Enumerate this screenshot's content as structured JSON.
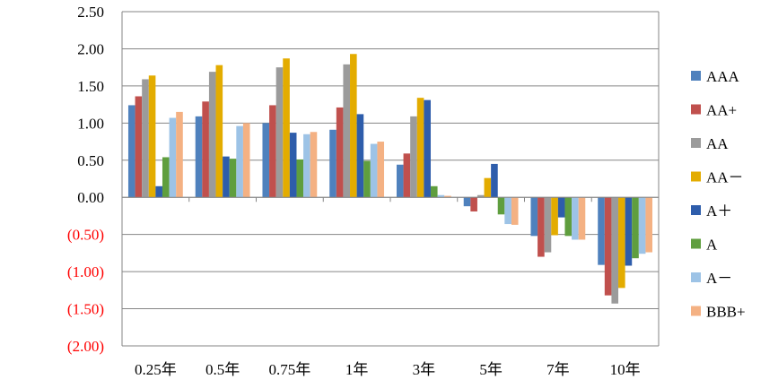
{
  "chart_data": {
    "type": "bar",
    "categories": [
      "0.25年",
      "0.5年",
      "0.75年",
      "1年",
      "3年",
      "5年",
      "7年",
      "10年"
    ],
    "series": [
      {
        "name": "AAA",
        "color": "#4F81BD",
        "values": [
          1.24,
          1.09,
          1.0,
          0.91,
          0.44,
          -0.12,
          -0.52,
          -0.91
        ]
      },
      {
        "name": "AA+",
        "color": "#C0504D",
        "values": [
          1.36,
          1.29,
          1.24,
          1.21,
          0.59,
          -0.19,
          -0.8,
          -1.32
        ]
      },
      {
        "name": "AA",
        "color": "#9B9B9B",
        "values": [
          1.59,
          1.69,
          1.75,
          1.79,
          1.09,
          0.03,
          -0.74,
          -1.43
        ]
      },
      {
        "name": "AA－",
        "color": "#E3AC00",
        "values": [
          1.64,
          1.78,
          1.87,
          1.93,
          1.34,
          0.26,
          -0.51,
          -1.22
        ]
      },
      {
        "name": "A＋",
        "color": "#2E5DAB",
        "values": [
          0.15,
          0.55,
          0.87,
          1.12,
          1.31,
          0.45,
          -0.27,
          -0.92
        ]
      },
      {
        "name": "A",
        "color": "#5F9E3E",
        "values": [
          0.54,
          0.52,
          0.51,
          0.49,
          0.15,
          -0.23,
          -0.52,
          -0.82
        ]
      },
      {
        "name": "A－",
        "color": "#9DC3E6",
        "values": [
          1.07,
          0.96,
          0.85,
          0.72,
          0.03,
          -0.36,
          -0.57,
          -0.76
        ]
      },
      {
        "name": "BBB+",
        "color": "#F4B183",
        "values": [
          1.15,
          1.0,
          0.88,
          0.75,
          0.02,
          -0.37,
          -0.57,
          -0.74
        ]
      }
    ],
    "y_ticks": [
      "2.50",
      "2.00",
      "1.50",
      "1.00",
      "0.50",
      "0.00",
      "(0.50)",
      "(1.00)",
      "(1.50)",
      "(2.00)"
    ],
    "ylim": [
      -2.0,
      2.5
    ],
    "negative_tick_color": "#FF0000",
    "positive_tick_color": "#000000",
    "grid": true,
    "legend_position": "right"
  }
}
